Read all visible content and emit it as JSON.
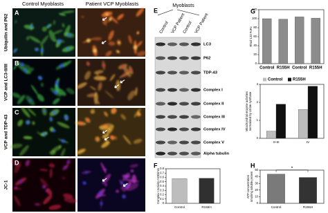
{
  "headers": {
    "control": "Control Myoblasts",
    "patient": "Patient VCP Myoblasts"
  },
  "rows": [
    {
      "letter": "A",
      "label": "Ubiquilin and P62"
    },
    {
      "letter": "B",
      "label": "VCP and LC3-II/III"
    },
    {
      "letter": "C",
      "label": "VCP and TDP-43"
    },
    {
      "letter": "D",
      "label": "JC-1"
    }
  ],
  "blot": {
    "letter": "E",
    "title": "Myoblasts",
    "lanes": [
      "Control",
      "VCP Patient",
      "Control",
      "VCP Patient"
    ],
    "bands": [
      "LC3",
      "P62",
      "TDP-43",
      "Complex I",
      "Complex II",
      "Complex III",
      "Complex IV",
      "Complex V",
      "Alpha tubulin"
    ]
  },
  "chart_data": [
    {
      "type": "bar",
      "letter": "F",
      "ylabel": [
        "Complex I Activity mOD/min"
      ],
      "categories": [
        "Control",
        "R155H"
      ],
      "values": [
        0.57,
        0.58
      ],
      "colors": [
        "#bdbdbd",
        "#303030"
      ],
      "ylim": [
        0,
        0.8
      ],
      "yticks": [
        0,
        0.1,
        0.2,
        0.3,
        0.4,
        0.5,
        0.6,
        0.7,
        0.8
      ]
    },
    {
      "type": "bar",
      "letter": "G",
      "ylabel": [
        "Rhod 123 FoFo"
      ],
      "categories": [
        "Control",
        "R155H",
        "Control",
        "R155H"
      ],
      "values": [
        100,
        99,
        104,
        101
      ],
      "colors": [
        "#8c8c8c",
        "#8c8c8c",
        "#8c8c8c",
        "#8c8c8c"
      ],
      "ylim": [
        0,
        120
      ],
      "yticks": [
        0,
        20,
        40,
        60,
        80,
        100,
        120
      ]
    },
    {
      "type": "grouped-bar",
      "ylabel": [
        "Mitochondrial enzyme activities",
        "normalized by citrate synthase"
      ],
      "categories": [
        "II+III",
        "IV"
      ],
      "series": [
        {
          "name": "Control",
          "color": "#bdbdbd",
          "values": [
            0.4,
            1.6
          ]
        },
        {
          "name": "R155H",
          "color": "#111111",
          "values": [
            1.9,
            2.9
          ]
        }
      ],
      "ylim": [
        0,
        3
      ],
      "yticks": [
        0,
        1,
        2,
        3
      ],
      "legend": "top"
    },
    {
      "type": "bar",
      "letter": "H",
      "ylabel": [
        "ATP concentration",
        "nmol/mg soluble protein"
      ],
      "categories": [
        "Control",
        "R155H"
      ],
      "values": [
        44,
        39
      ],
      "colors": [
        "#7a7a7a",
        "#333333"
      ],
      "ylim": [
        0,
        50
      ],
      "yticks": [
        0,
        10,
        20,
        30,
        40,
        50
      ],
      "annotation": "*"
    }
  ]
}
